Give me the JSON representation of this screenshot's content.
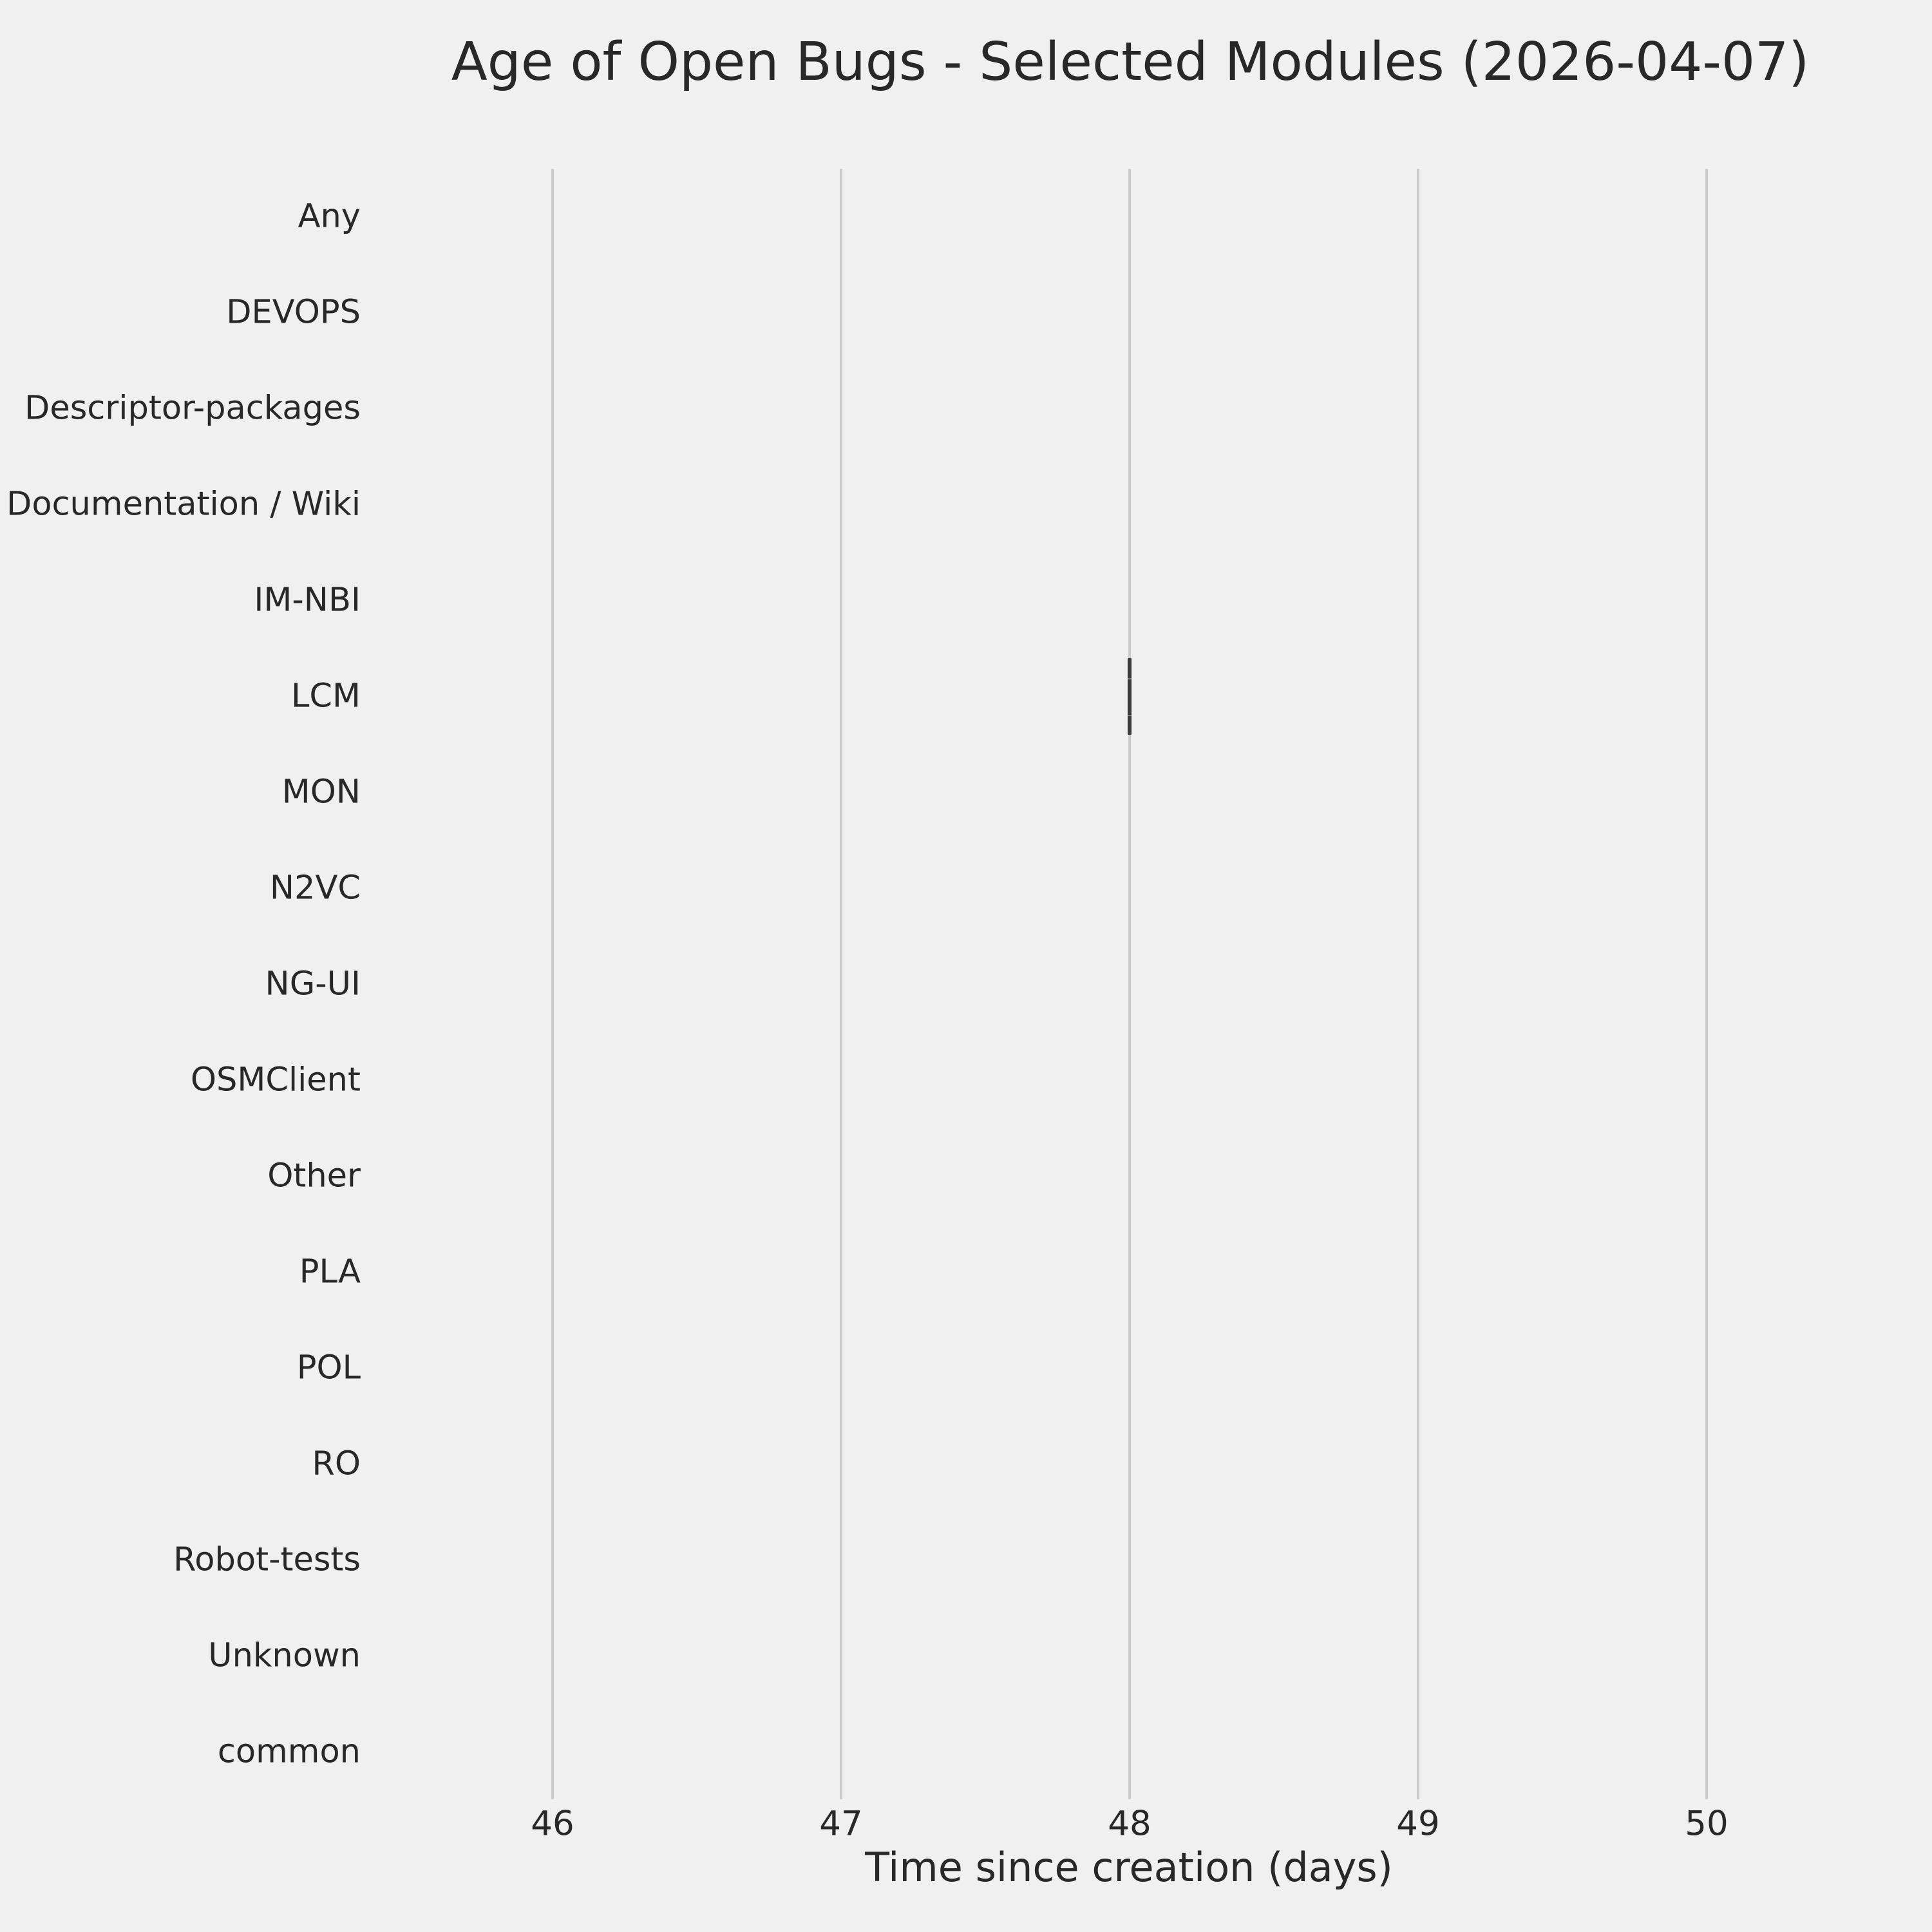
{
  "title": "Age of Open Bugs - Selected Modules (2026-04-07)",
  "x_axis_label": "Time since creation (days)",
  "colors": {
    "background": "#f0f0f0",
    "gridline": "#cccccc",
    "box_mark": "#3c3c3c",
    "text": "#282828"
  },
  "chart_data": {
    "type": "boxplot",
    "orientation": "horizontal",
    "title": "Age of Open Bugs - Selected Modules (2026-04-07)",
    "xlabel": "Time since creation (days)",
    "ylabel": "",
    "grid": "vertical-only",
    "legend": "none",
    "x_ticks": [
      46,
      47,
      48,
      49,
      50
    ],
    "xlim": [
      45.55,
      50.45
    ],
    "categories": [
      "Any",
      "DEVOPS",
      "Descriptor-packages",
      "Documentation / Wiki",
      "IM-NBI",
      "LCM",
      "MON",
      "N2VC",
      "NG-UI",
      "OSMClient",
      "Other",
      "PLA",
      "POL",
      "RO",
      "Robot-tests",
      "Unknown",
      "common"
    ],
    "values_by_category": {
      "Any": [],
      "DEVOPS": [],
      "Descriptor-packages": [],
      "Documentation / Wiki": [],
      "IM-NBI": [],
      "LCM": [
        48
      ],
      "MON": [],
      "N2VC": [],
      "NG-UI": [],
      "OSMClient": [],
      "Other": [],
      "PLA": [],
      "POL": [],
      "RO": [],
      "Robot-tests": [],
      "Unknown": [],
      "common": []
    }
  }
}
